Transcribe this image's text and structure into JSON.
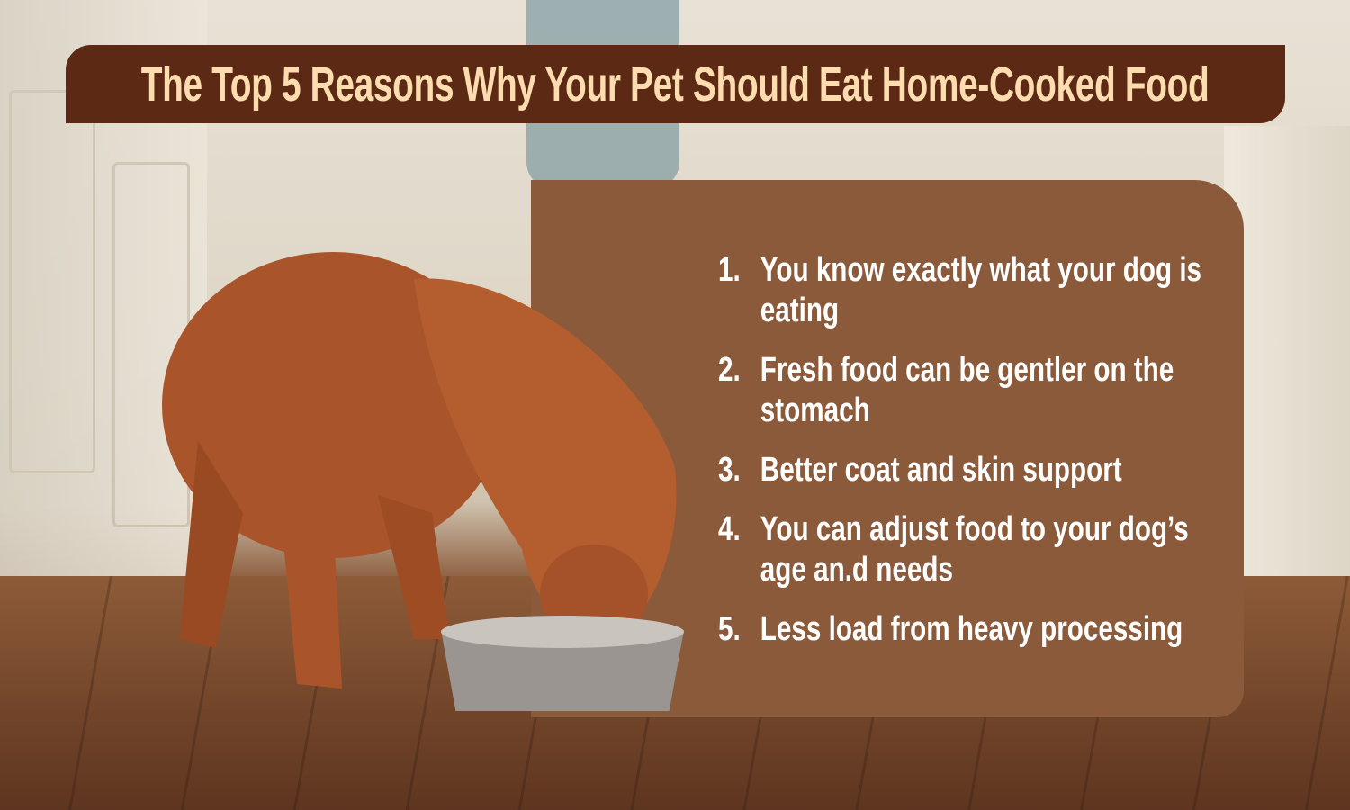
{
  "title": "The Top 5 Reasons Why Your Pet Should Eat Home-Cooked Food",
  "reasons": [
    {
      "number": "1.",
      "text": "You know exactly what your dog is eating"
    },
    {
      "number": "2.",
      "text": "Fresh food can be gentler on the stomach"
    },
    {
      "number": "3.",
      "text": "Better coat and skin support"
    },
    {
      "number": "4.",
      "text": "You can adjust food to your dog’s age an.d needs"
    },
    {
      "number": "5.",
      "text": "Less load from heavy processing"
    }
  ],
  "colors": {
    "title_bar": "#5c2914",
    "title_text": "#fddcb0",
    "panel": "#8a5a3b",
    "list_text": "#ffffff"
  }
}
